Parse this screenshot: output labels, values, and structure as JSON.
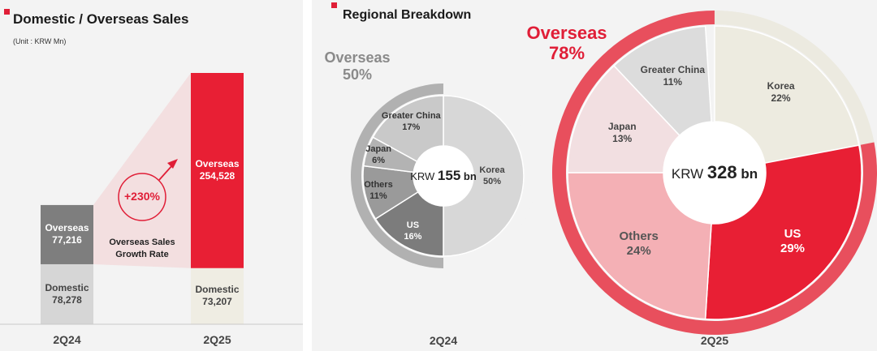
{
  "left": {
    "title": "Domestic / Overseas Sales",
    "unit": "(Unit : KRW Mn)",
    "growth": {
      "value": "+230%",
      "caption_line1": "Overseas Sales",
      "caption_line2": "Growth Rate"
    }
  },
  "right": {
    "title": "Regional Breakdown"
  },
  "chart_data": [
    {
      "type": "bar",
      "title": "Domestic / Overseas Sales",
      "unit": "(Unit : KRW Mn)",
      "categories": [
        "2Q24",
        "2Q25"
      ],
      "series": [
        {
          "name": "Domestic",
          "values": [
            78278,
            73207
          ],
          "labels": [
            "78,278",
            "73,207"
          ]
        },
        {
          "name": "Overseas",
          "values": [
            77216,
            254528
          ],
          "labels": [
            "77,216",
            "254,528"
          ]
        }
      ],
      "annotation": "+230%",
      "colors": {
        "domestic_2q24": "#d6d6d6",
        "overseas_2q24": "#7e7e7e",
        "domestic_2q25": "#efede3",
        "overseas_2q25": "#e81f34"
      }
    },
    {
      "type": "pie",
      "period": "2Q24",
      "center_prefix": "KRW",
      "center_value": "155",
      "center_suffix": "bn",
      "outer_label": "Overseas",
      "outer_value": "50%",
      "outer_share": 50,
      "slices": [
        {
          "name": "Korea",
          "label": "50%",
          "value": 50,
          "color": "#d7d7d7"
        },
        {
          "name": "US",
          "label": "16%",
          "value": 16,
          "color": "#7c7c7c"
        },
        {
          "name": "Others",
          "label": "11%",
          "value": 11,
          "color": "#9a9a9a"
        },
        {
          "name": "Japan",
          "label": "6%",
          "value": 6,
          "color": "#b3b3b3"
        },
        {
          "name": "Greater China",
          "label": "17%",
          "value": 17,
          "color": "#c9c9c9"
        }
      ]
    },
    {
      "type": "pie",
      "period": "2Q25",
      "center_prefix": "KRW",
      "center_value": "328",
      "center_suffix": "bn",
      "outer_label": "Overseas",
      "outer_value": "78%",
      "outer_share": 78,
      "slices": [
        {
          "name": "Korea",
          "label": "22%",
          "value": 22,
          "color": "#edebe0"
        },
        {
          "name": "US",
          "label": "29%",
          "value": 29,
          "color": "#e81f34"
        },
        {
          "name": "Others",
          "label": "24%",
          "value": 24,
          "color": "#f4b0b5"
        },
        {
          "name": "Japan",
          "label": "13%",
          "value": 13,
          "color": "#f2dfe1"
        },
        {
          "name": "Greater China",
          "label": "11%",
          "value": 11,
          "color": "#dcdcdc"
        }
      ]
    }
  ]
}
